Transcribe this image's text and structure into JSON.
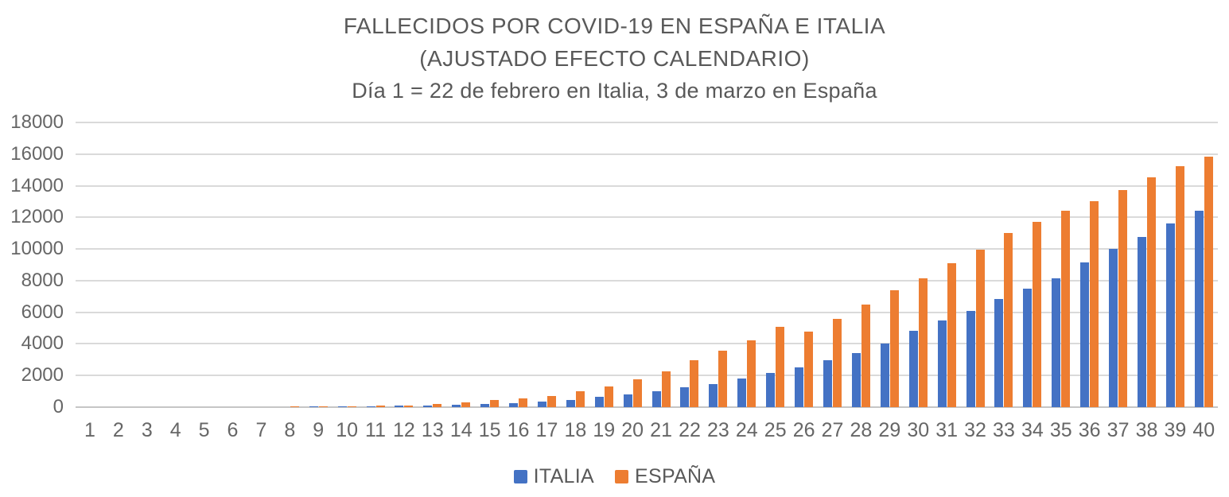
{
  "title": {
    "line1": "FALLECIDOS POR COVID-19 EN ESPAÑA E ITALIA",
    "line2": "(AJUSTADO EFECTO CALENDARIO)",
    "line3": "Día 1 = 22 de febrero en Italia, 3 de marzo en España"
  },
  "chart_data": {
    "type": "bar",
    "title": "FALLECIDOS POR COVID-19 EN ESPAÑA E ITALIA (AJUSTADO EFECTO CALENDARIO)",
    "subtitle": "Día 1 = 22 de febrero en Italia, 3 de marzo en España",
    "categories": [
      "1",
      "2",
      "3",
      "4",
      "5",
      "6",
      "7",
      "8",
      "9",
      "10",
      "11",
      "12",
      "13",
      "14",
      "15",
      "16",
      "17",
      "18",
      "19",
      "20",
      "21",
      "22",
      "23",
      "24",
      "25",
      "26",
      "27",
      "28",
      "29",
      "30",
      "31",
      "32",
      "33",
      "34",
      "35",
      "36",
      "37",
      "38",
      "39",
      "40"
    ],
    "series": [
      {
        "name": "ITALIA",
        "key": "italia",
        "color": "#4472C4",
        "values": [
          1,
          2,
          3,
          7,
          10,
          12,
          17,
          21,
          29,
          34,
          52,
          79,
          107,
          148,
          197,
          233,
          366,
          463,
          631,
          827,
          1016,
          1266,
          1441,
          1809,
          2158,
          2503,
          2978,
          3405,
          4032,
          4825,
          5476,
          6077,
          6820,
          7503,
          8165,
          9134,
          10023,
          10779,
          11591,
          12428
        ]
      },
      {
        "name": "ESPAÑA",
        "key": "espana",
        "color": "#ED7D31",
        "values": [
          0,
          1,
          2,
          3,
          5,
          10,
          17,
          28,
          35,
          54,
          84,
          110,
          185,
          280,
          430,
          570,
          690,
          990,
          1330,
          1750,
          2280,
          2980,
          3560,
          4230,
          5070,
          4760,
          5600,
          6500,
          7370,
          8170,
          9080,
          9950,
          10990,
          11720,
          12400,
          13030,
          13720,
          14520,
          15240,
          15830
        ]
      }
    ],
    "xlabel": "",
    "ylabel": "",
    "ylim": [
      0,
      18000
    ],
    "yticks": [
      0,
      2000,
      4000,
      6000,
      8000,
      10000,
      12000,
      14000,
      16000,
      18000
    ],
    "grid": true,
    "legend_position": "bottom"
  },
  "legend": {
    "items": [
      {
        "label": "ITALIA",
        "color": "#4472C4"
      },
      {
        "label": "ESPAÑA",
        "color": "#ED7D31"
      }
    ]
  },
  "colors": {
    "italia": "#4472C4",
    "espana": "#ED7D31",
    "gridline": "#DADADA",
    "baseline": "#C6C6C6",
    "title_text": "#595959",
    "axis_text": "#666666",
    "background": "#FFFFFF"
  }
}
